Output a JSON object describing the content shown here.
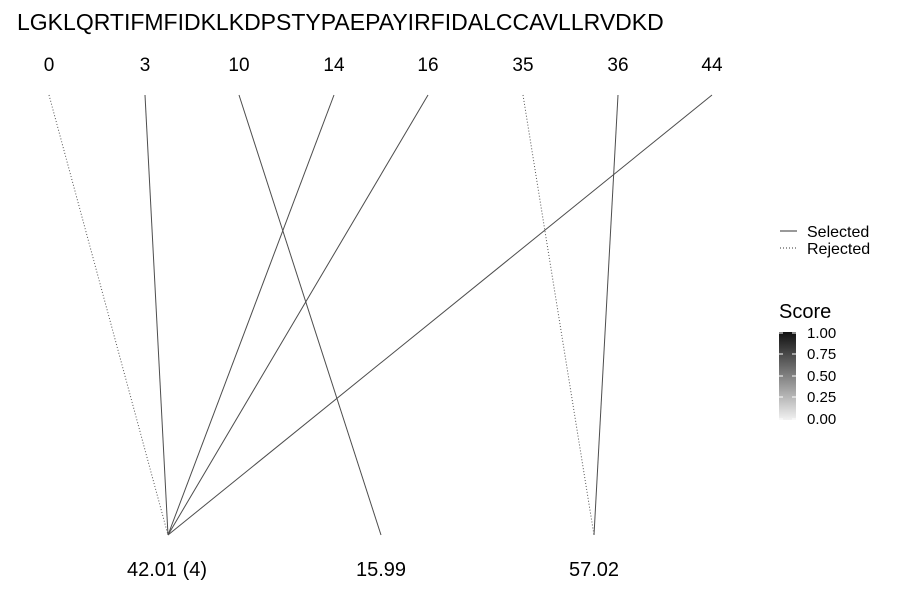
{
  "sequence": "LGKLQRTIFMFIDKLKDPSTYPAEPAYIRFIDALCCAVLLRVDKD",
  "top_positions": [
    "0",
    "3",
    "10",
    "14",
    "16",
    "35",
    "36",
    "44"
  ],
  "bottom_labels": [
    "42.01 (4)",
    "15.99",
    "57.02"
  ],
  "links": [
    {
      "from": 0,
      "to": 0,
      "status": "rejected",
      "score": 0.0
    },
    {
      "from": 1,
      "to": 0,
      "status": "selected",
      "score": 0.5
    },
    {
      "from": 2,
      "to": 1,
      "status": "selected",
      "score": 0.5
    },
    {
      "from": 3,
      "to": 0,
      "status": "selected",
      "score": 0.5
    },
    {
      "from": 4,
      "to": 0,
      "status": "selected",
      "score": 0.5
    },
    {
      "from": 5,
      "to": 2,
      "status": "rejected",
      "score": 0.0
    },
    {
      "from": 6,
      "to": 2,
      "status": "selected",
      "score": 0.5
    },
    {
      "from": 7,
      "to": 0,
      "status": "selected",
      "score": 0.5
    }
  ],
  "legend": {
    "linetype_items": [
      {
        "label": "Selected",
        "style": "solid"
      },
      {
        "label": "Rejected",
        "style": "dotted"
      }
    ],
    "score_title": "Score",
    "score_ticks": [
      "1.00",
      "0.75",
      "0.50",
      "0.25",
      "0.00"
    ],
    "score_colors": {
      "high": "#111111",
      "low": "#f2f2f2"
    }
  }
}
